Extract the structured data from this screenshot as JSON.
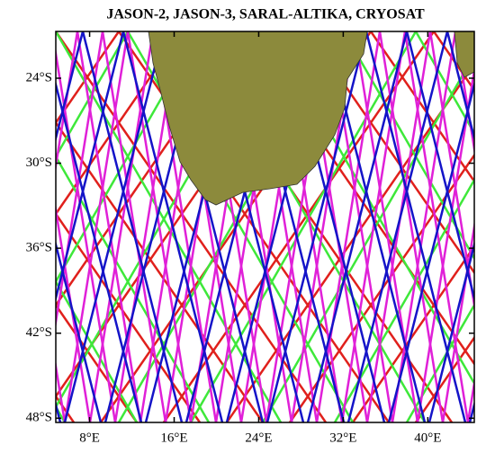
{
  "chart_data": {
    "type": "map",
    "title": "JASON-2, JASON-3, SARAL-ALTIKA, CRYOSAT",
    "xlim": [
      4.8,
      44.4
    ],
    "ylim": [
      -48.3,
      -20.7
    ],
    "xticks": [
      {
        "value": 8,
        "label": "8°E"
      },
      {
        "value": 16,
        "label": "16°E"
      },
      {
        "value": 24,
        "label": "24°E"
      },
      {
        "value": 32,
        "label": "32°E"
      },
      {
        "value": 40,
        "label": "40°E"
      }
    ],
    "yticks": [
      {
        "value": -24,
        "label": "24°S"
      },
      {
        "value": -30,
        "label": "30°S"
      },
      {
        "value": -36,
        "label": "36°S"
      },
      {
        "value": -42,
        "label": "42°S"
      },
      {
        "value": -48,
        "label": "48°S"
      }
    ]
  }
}
